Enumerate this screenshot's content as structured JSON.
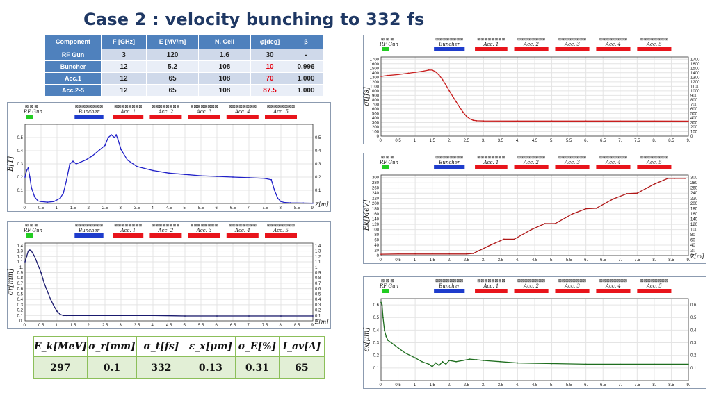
{
  "title": "Case 2 : velocity bunching to 332 fs",
  "param_table": {
    "headers": [
      "Component",
      "F [GHz]",
      "E [MV/m]",
      "N. Cell",
      "φ[deg]",
      "β"
    ],
    "rows": [
      {
        "component": "RF Gun",
        "f": "3",
        "e": "120",
        "ncell": "1.6",
        "phi": "30",
        "beta": "-",
        "phi_red": false
      },
      {
        "component": "Buncher",
        "f": "12",
        "e": "5.2",
        "ncell": "108",
        "phi": "10",
        "beta": "0.996",
        "phi_red": true
      },
      {
        "component": "Acc.1",
        "f": "12",
        "e": "65",
        "ncell": "108",
        "phi": "70",
        "beta": "1.000",
        "phi_red": true
      },
      {
        "component": "Acc.2-5",
        "f": "12",
        "e": "65",
        "ncell": "108",
        "phi": "87.5",
        "beta": "1.000",
        "phi_red": true
      }
    ]
  },
  "summary_table": {
    "headers": [
      "E_k[MeV]",
      "σ_r[mm]",
      "σ_t[fs]",
      "ε_x[μm]",
      "σ_E[%]",
      "I_av[A]"
    ],
    "values": [
      "297",
      "0.1",
      "332",
      "0.13",
      "0.31",
      "65"
    ]
  },
  "colors": {
    "title": "#1f3864",
    "header_blue": "#4f81bd",
    "buncher": "#1e3ccc",
    "acc": "#e8141b",
    "gun": "#22cc22",
    "summary_border": "#8cbf5a"
  },
  "lattice": {
    "labels": [
      "RF Gun",
      "Buncher",
      "Acc. 1",
      "Acc. 2",
      "Acc. 3",
      "Acc. 4",
      "Acc. 5"
    ]
  },
  "chart_data": [
    {
      "id": "bfield",
      "type": "line",
      "ylabel": "B[T]",
      "xlabel": "Z[m]",
      "xlim": [
        0,
        9
      ],
      "ylim": [
        0,
        0.6
      ],
      "xticks": [
        "0.",
        "0.5",
        "1.",
        "1.5",
        "2.",
        "2.5",
        "3.",
        "3.5",
        "4.",
        "4.5",
        "5.",
        "5.5",
        "6.",
        "6.5",
        "7.",
        "7.5",
        "8.",
        "8.5",
        "9."
      ],
      "yticks": [
        "0.1",
        "0.2",
        "0.3",
        "0.4",
        "0.5"
      ],
      "ytick_values": [
        0.1,
        0.2,
        0.3,
        0.4,
        0.5
      ],
      "line_color": "#2020c8",
      "x": [
        0,
        0.05,
        0.1,
        0.15,
        0.2,
        0.3,
        0.4,
        0.5,
        0.7,
        0.9,
        1.1,
        1.2,
        1.3,
        1.4,
        1.5,
        1.6,
        1.7,
        1.9,
        2.1,
        2.3,
        2.5,
        2.6,
        2.7,
        2.8,
        2.85,
        2.9,
        2.95,
        3.0,
        3.2,
        3.5,
        4.0,
        4.5,
        5.0,
        5.5,
        6.0,
        6.5,
        7.0,
        7.5,
        7.7,
        7.8,
        7.9,
        8.0,
        8.1,
        8.3,
        8.7,
        9.0
      ],
      "y": [
        0.2,
        0.25,
        0.27,
        0.2,
        0.12,
        0.05,
        0.02,
        0.015,
        0.01,
        0.015,
        0.04,
        0.08,
        0.18,
        0.3,
        0.32,
        0.3,
        0.31,
        0.33,
        0.36,
        0.4,
        0.44,
        0.5,
        0.52,
        0.5,
        0.52,
        0.49,
        0.45,
        0.41,
        0.33,
        0.28,
        0.25,
        0.23,
        0.22,
        0.21,
        0.205,
        0.2,
        0.195,
        0.19,
        0.18,
        0.1,
        0.04,
        0.015,
        0.008,
        0.005,
        0.003,
        0.002
      ]
    },
    {
      "id": "sigma_r",
      "type": "line",
      "ylabel": "σr[mm]",
      "xlabel": "Z[m]",
      "xlim": [
        0,
        9
      ],
      "ylim": [
        0,
        1.45
      ],
      "xticks": [
        "0.",
        "0.5",
        "1.",
        "1.5",
        "2.",
        "2.5",
        "3.",
        "3.5",
        "4.",
        "4.5",
        "5.",
        "5.5",
        "6.",
        "6.5",
        "7.",
        "7.5",
        "8.",
        "8.5",
        "9."
      ],
      "yticks": [
        "0.",
        "0.1",
        "0.2",
        "0.3",
        "0.4",
        "0.5",
        "0.6",
        "0.7",
        "0.8",
        "0.9",
        "1.",
        "1.1",
        "1.2",
        "1.3",
        "1.4"
      ],
      "ytick_values": [
        0,
        0.1,
        0.2,
        0.3,
        0.4,
        0.5,
        0.6,
        0.7,
        0.8,
        0.9,
        1.0,
        1.1,
        1.2,
        1.3,
        1.4
      ],
      "line_color": "#1a1a6e",
      "x": [
        0,
        0.05,
        0.1,
        0.15,
        0.2,
        0.3,
        0.4,
        0.5,
        0.6,
        0.7,
        0.8,
        0.9,
        1.0,
        1.1,
        1.2,
        1.3,
        1.5,
        2.0,
        3.0,
        4.0,
        5.0,
        6.0,
        7.0,
        8.0,
        9.0
      ],
      "y": [
        1.1,
        1.2,
        1.3,
        1.32,
        1.3,
        1.2,
        1.05,
        0.9,
        0.7,
        0.55,
        0.4,
        0.28,
        0.18,
        0.12,
        0.1,
        0.1,
        0.1,
        0.1,
        0.1,
        0.1,
        0.09,
        0.09,
        0.09,
        0.09,
        0.09
      ]
    },
    {
      "id": "sigma_t",
      "type": "line",
      "ylabel": "σt[fs]",
      "xlabel": "",
      "xlim": [
        0,
        9
      ],
      "ylim": [
        0,
        1750
      ],
      "xticks": [
        "0.",
        "0.5",
        "1.",
        "1.5",
        "2.",
        "2.5",
        "3.",
        "3.5",
        "4.",
        "4.5",
        "5.",
        "5.5",
        "6.",
        "6.5",
        "7.",
        "7.5",
        "8.",
        "8.5",
        "9."
      ],
      "yticks": [
        "0",
        "100",
        "200",
        "300",
        "400",
        "500",
        "600",
        "700",
        "800",
        "900",
        "1000",
        "1100",
        "1200",
        "1300",
        "1400",
        "1500",
        "1600",
        "1700"
      ],
      "ytick_values": [
        0,
        100,
        200,
        300,
        400,
        500,
        600,
        700,
        800,
        900,
        1000,
        1100,
        1200,
        1300,
        1400,
        1500,
        1600,
        1700
      ],
      "line_color": "#c81e1e",
      "x": [
        0,
        0.2,
        0.5,
        0.8,
        1.0,
        1.2,
        1.4,
        1.5,
        1.6,
        1.7,
        1.8,
        1.9,
        2.0,
        2.1,
        2.2,
        2.3,
        2.4,
        2.5,
        2.6,
        2.7,
        2.8,
        3.0,
        4.0,
        5.0,
        6.0,
        7.0,
        8.0,
        9.0
      ],
      "y": [
        1320,
        1340,
        1360,
        1390,
        1410,
        1430,
        1460,
        1460,
        1420,
        1350,
        1250,
        1130,
        1000,
        880,
        760,
        640,
        530,
        440,
        380,
        350,
        340,
        335,
        333,
        333,
        333,
        333,
        333,
        332
      ]
    },
    {
      "id": "ek",
      "type": "line",
      "ylabel": "Ek[MeV]",
      "xlabel": "Z[m]",
      "xlim": [
        0,
        9
      ],
      "ylim": [
        0,
        310
      ],
      "xticks": [
        "0.",
        "0.5",
        "1.",
        "1.5",
        "2.",
        "2.5",
        "3.",
        "3.5",
        "4.",
        "4.5",
        "5.",
        "5.5",
        "6.",
        "6.5",
        "7.",
        "7.5",
        "8.",
        "8.5",
        "9."
      ],
      "yticks": [
        "0",
        "20",
        "40",
        "60",
        "80",
        "100",
        "120",
        "140",
        "160",
        "180",
        "200",
        "220",
        "240",
        "260",
        "280",
        "300"
      ],
      "ytick_values": [
        0,
        20,
        40,
        60,
        80,
        100,
        120,
        140,
        160,
        180,
        200,
        220,
        240,
        260,
        280,
        300
      ],
      "line_color": "#b01818",
      "x": [
        0,
        0.5,
        1.0,
        1.5,
        2.0,
        2.5,
        2.7,
        3.2,
        3.6,
        3.9,
        4.4,
        4.8,
        5.1,
        5.6,
        6.0,
        6.3,
        6.8,
        7.2,
        7.5,
        8.0,
        8.4,
        8.6,
        8.9
      ],
      "y": [
        5,
        6,
        6,
        6,
        6,
        6,
        8,
        40,
        63,
        63,
        100,
        123,
        123,
        160,
        180,
        182,
        218,
        238,
        240,
        275,
        297,
        297,
        297
      ]
    },
    {
      "id": "emittance",
      "type": "line",
      "ylabel": "εx[μm]",
      "xlabel": "",
      "xlim": [
        0,
        9
      ],
      "ylim": [
        0,
        0.65
      ],
      "xticks": [
        "0.",
        "0.5",
        "1.",
        "1.5",
        "2.",
        "2.5",
        "3.",
        "3.5",
        "4.",
        "4.5",
        "5.",
        "5.5",
        "6.",
        "6.5",
        "7.",
        "7.5",
        "8.",
        "8.5",
        "9."
      ],
      "yticks": [
        "0.1",
        "0.2",
        "0.3",
        "0.4",
        "0.5",
        "0.6"
      ],
      "ytick_values": [
        0.1,
        0.2,
        0.3,
        0.4,
        0.5,
        0.6
      ],
      "line_color": "#1f6e1f",
      "x": [
        0,
        0.03,
        0.06,
        0.1,
        0.15,
        0.2,
        0.3,
        0.5,
        0.7,
        1.0,
        1.2,
        1.4,
        1.5,
        1.6,
        1.7,
        1.8,
        1.9,
        2.0,
        2.2,
        2.4,
        2.6,
        2.8,
        3.0,
        3.5,
        4.0,
        5.0,
        6.0,
        7.0,
        8.0,
        9.0
      ],
      "y": [
        0.62,
        0.6,
        0.5,
        0.4,
        0.35,
        0.32,
        0.3,
        0.26,
        0.22,
        0.18,
        0.15,
        0.13,
        0.11,
        0.14,
        0.12,
        0.15,
        0.13,
        0.16,
        0.15,
        0.16,
        0.17,
        0.165,
        0.16,
        0.15,
        0.14,
        0.135,
        0.13,
        0.13,
        0.13,
        0.13
      ]
    }
  ]
}
